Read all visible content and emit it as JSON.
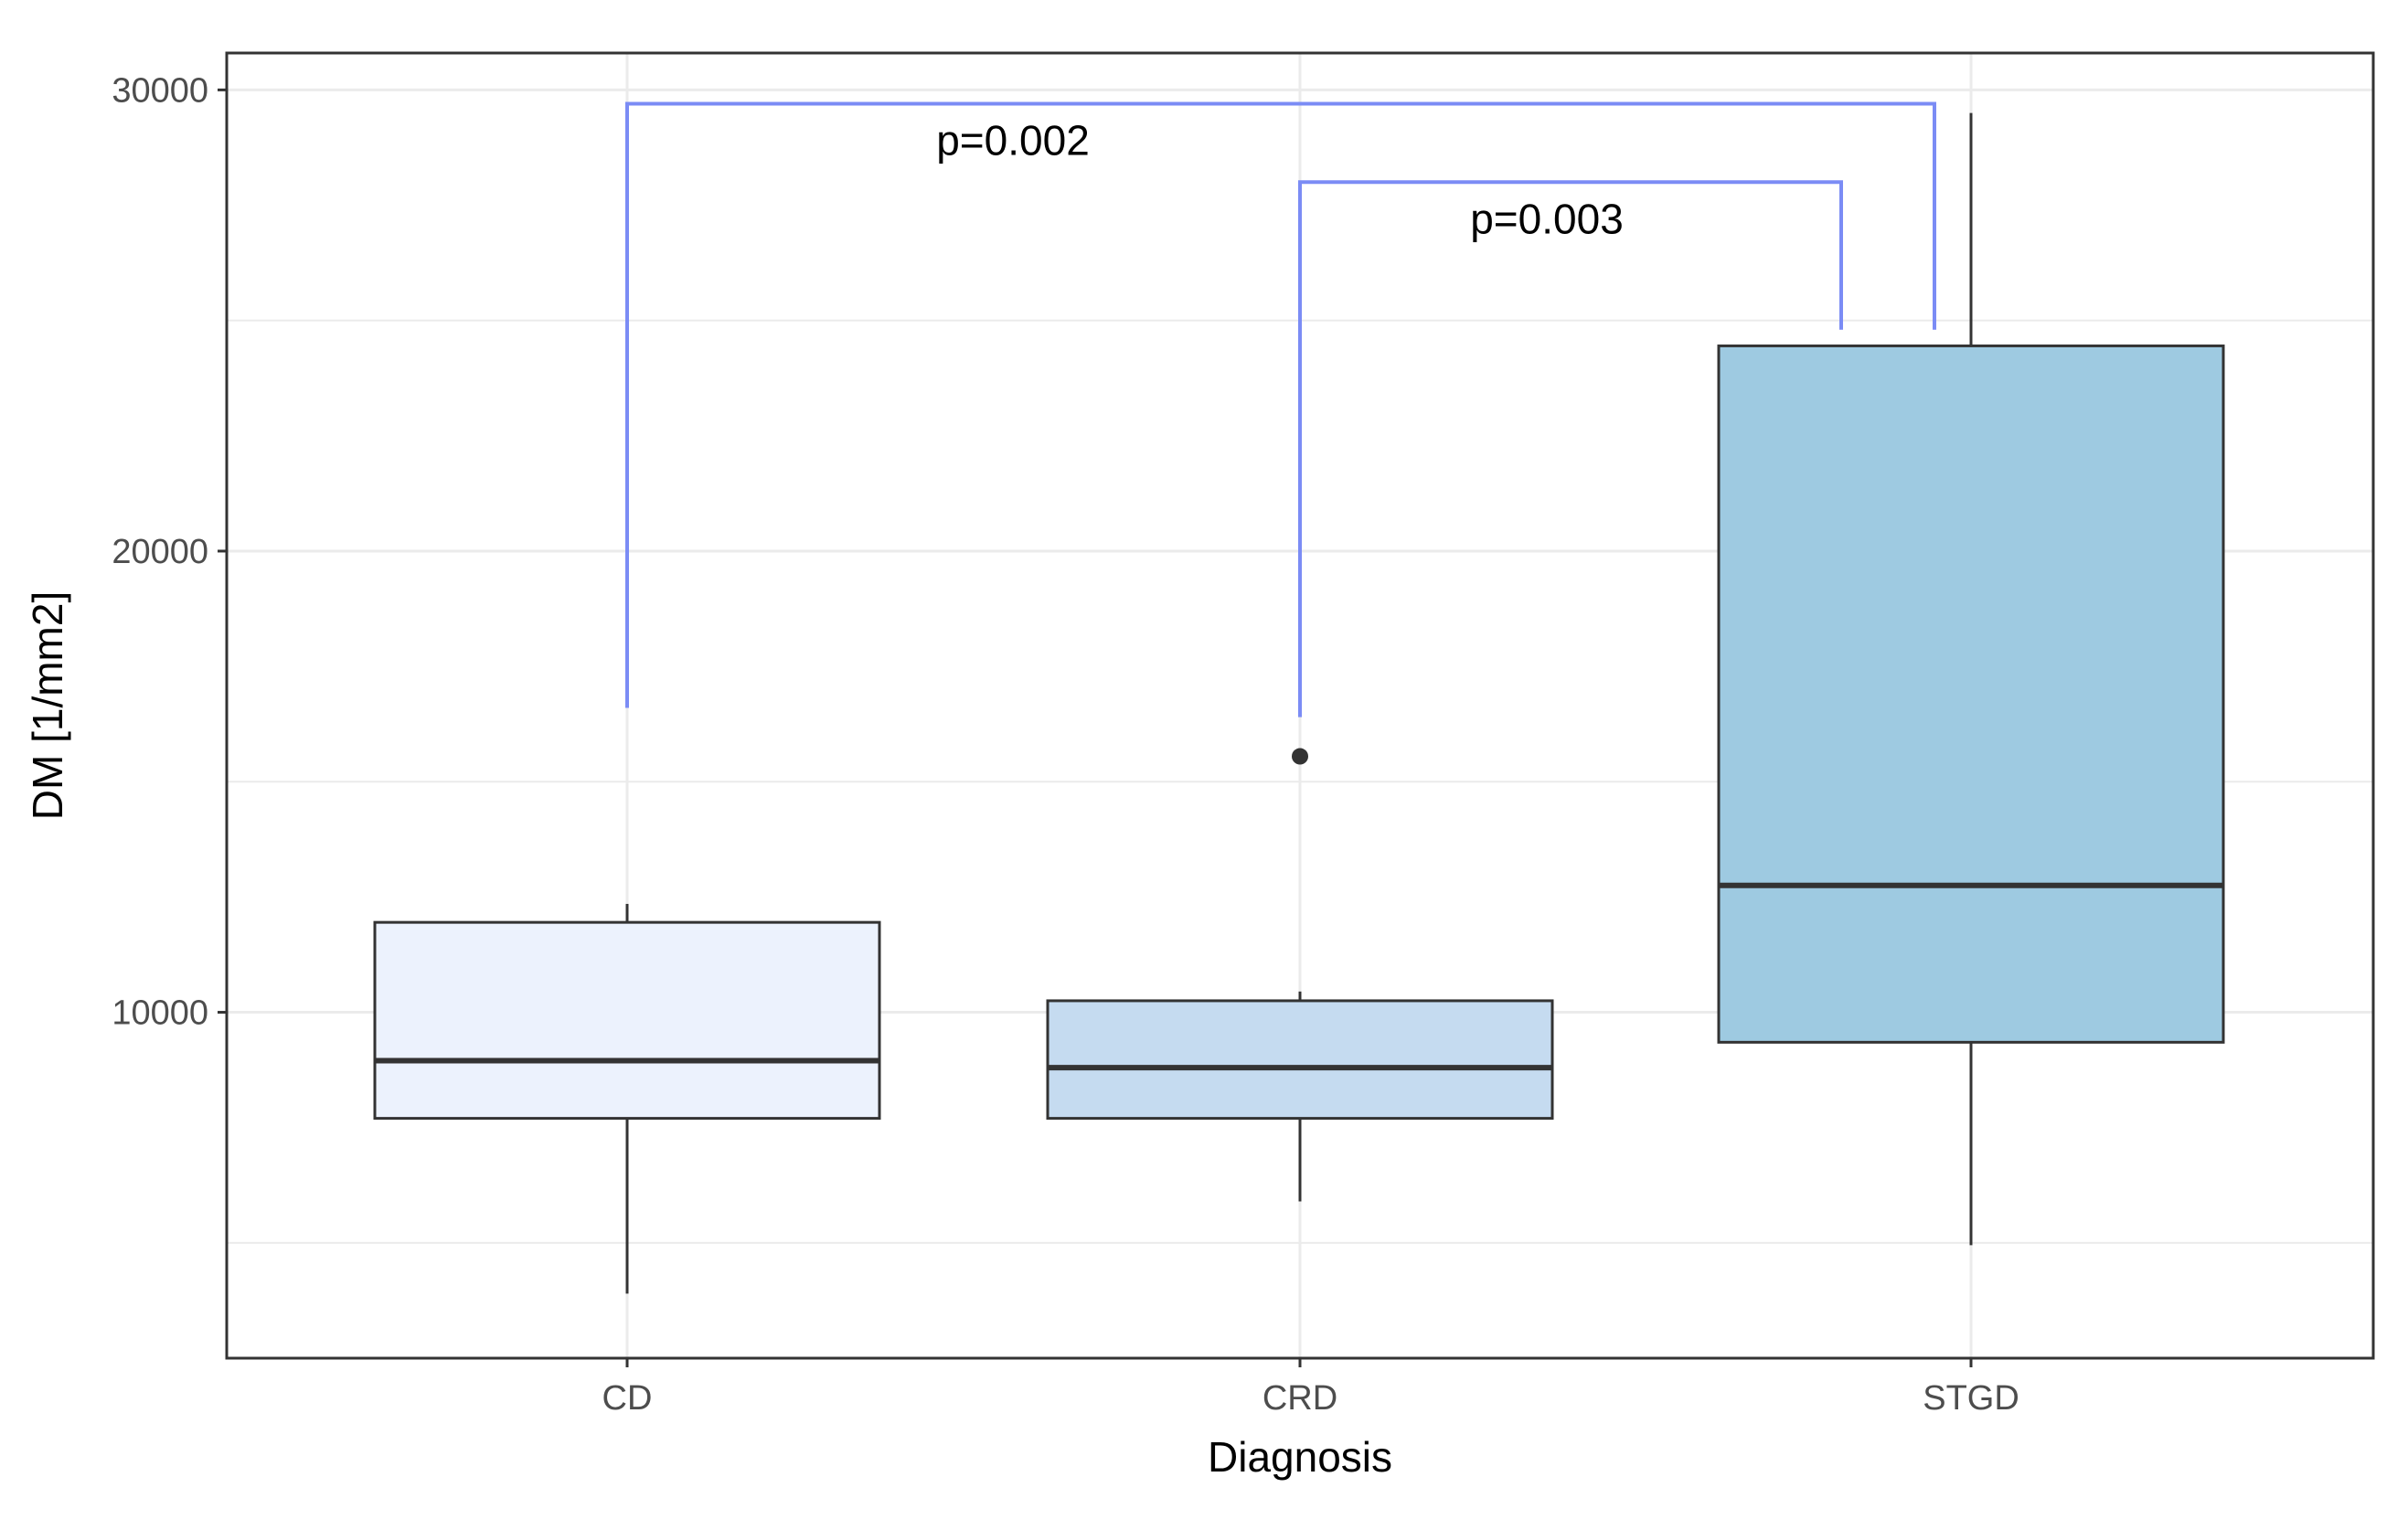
{
  "chart_data": {
    "type": "box",
    "xlabel": "Diagnosis",
    "ylabel": "DM [1/mm2]",
    "ylim": [
      2500,
      30800
    ],
    "yticks": [
      10000,
      20000,
      30000
    ],
    "ytick_labels": [
      "10000",
      "20000",
      "30000"
    ],
    "categories": [
      "CD",
      "CRD",
      "STGD"
    ],
    "boxes": [
      {
        "category": "CD",
        "whisker_low": 3900,
        "q1": 7700,
        "median": 8950,
        "q3": 11950,
        "whisker_high": 12350,
        "outliers": [],
        "fill": "#ecf2fd"
      },
      {
        "category": "CRD",
        "whisker_low": 5900,
        "q1": 7700,
        "median": 8800,
        "q3": 10250,
        "whisker_high": 10450,
        "outliers": [
          15550
        ],
        "fill": "#c5dbf0"
      },
      {
        "category": "STGD",
        "whisker_low": 4950,
        "q1": 9350,
        "median": 12750,
        "q3": 24450,
        "whisker_high": 29500,
        "outliers": [],
        "fill": "#9ecae1"
      }
    ],
    "grid": true,
    "annotations": [
      {
        "group1": "CD",
        "group2": "STGD",
        "label": "p=0.002",
        "y": 29700,
        "left_end": 16600,
        "right_end": 24800
      },
      {
        "group1": "CRD",
        "group2": "STGD",
        "label": "p=0.003",
        "y": 28000,
        "left_end": 16400,
        "right_end": 24800
      }
    ],
    "colors": {
      "bracket": "#7b8cf5",
      "box_stroke": "#333333",
      "grid": "#ebebeb",
      "panel_border": "#333333"
    }
  }
}
